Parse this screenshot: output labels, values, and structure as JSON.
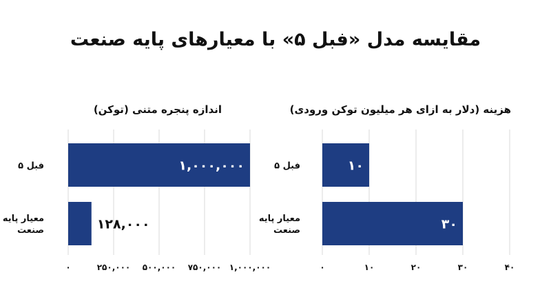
{
  "title": "مقایسه مدل «فبل ۵» با معیارهای پایه صنعت",
  "colors": {
    "bar": "#1e3d82",
    "grid": "#d8d8d8",
    "text": "#111111"
  },
  "chart_data": [
    {
      "type": "bar",
      "orientation": "horizontal",
      "title": "هزینه (دلار به ازای هر میلیون توکن ورودی)",
      "categories": [
        "فبل ۵",
        "معیار پایه صنعت"
      ],
      "category_labels": [
        [
          "فبل ۵"
        ],
        [
          "معیار پایه",
          "صنعت"
        ]
      ],
      "values": [
        10,
        30
      ],
      "value_labels": [
        "۱۰",
        "۳۰"
      ],
      "xlim": [
        0,
        40
      ],
      "ticks": [
        0,
        10,
        20,
        30,
        40
      ],
      "tick_labels": [
        "۰",
        "۱۰",
        "۲۰",
        "۳۰",
        "۴۰"
      ],
      "grid": true
    },
    {
      "type": "bar",
      "orientation": "horizontal",
      "title": "اندازه پنجره متنی (توکن)",
      "categories": [
        "فبل ۵",
        "معیار پایه صنعت"
      ],
      "category_labels": [
        [
          "فبل ۵"
        ],
        [
          "معیار پایه",
          "صنعت"
        ]
      ],
      "values": [
        1000000,
        128000
      ],
      "value_labels": [
        "۱,۰۰۰,۰۰۰",
        "۱۲۸,۰۰۰"
      ],
      "xlim": [
        0,
        1000000
      ],
      "ticks": [
        0,
        250000,
        500000,
        750000,
        1000000
      ],
      "tick_labels": [
        "۰",
        "۲۵۰,۰۰۰",
        "۵۰۰,۰۰۰",
        "۷۵۰,۰۰۰",
        "۱,۰۰۰,۰۰۰"
      ],
      "grid": true
    }
  ]
}
